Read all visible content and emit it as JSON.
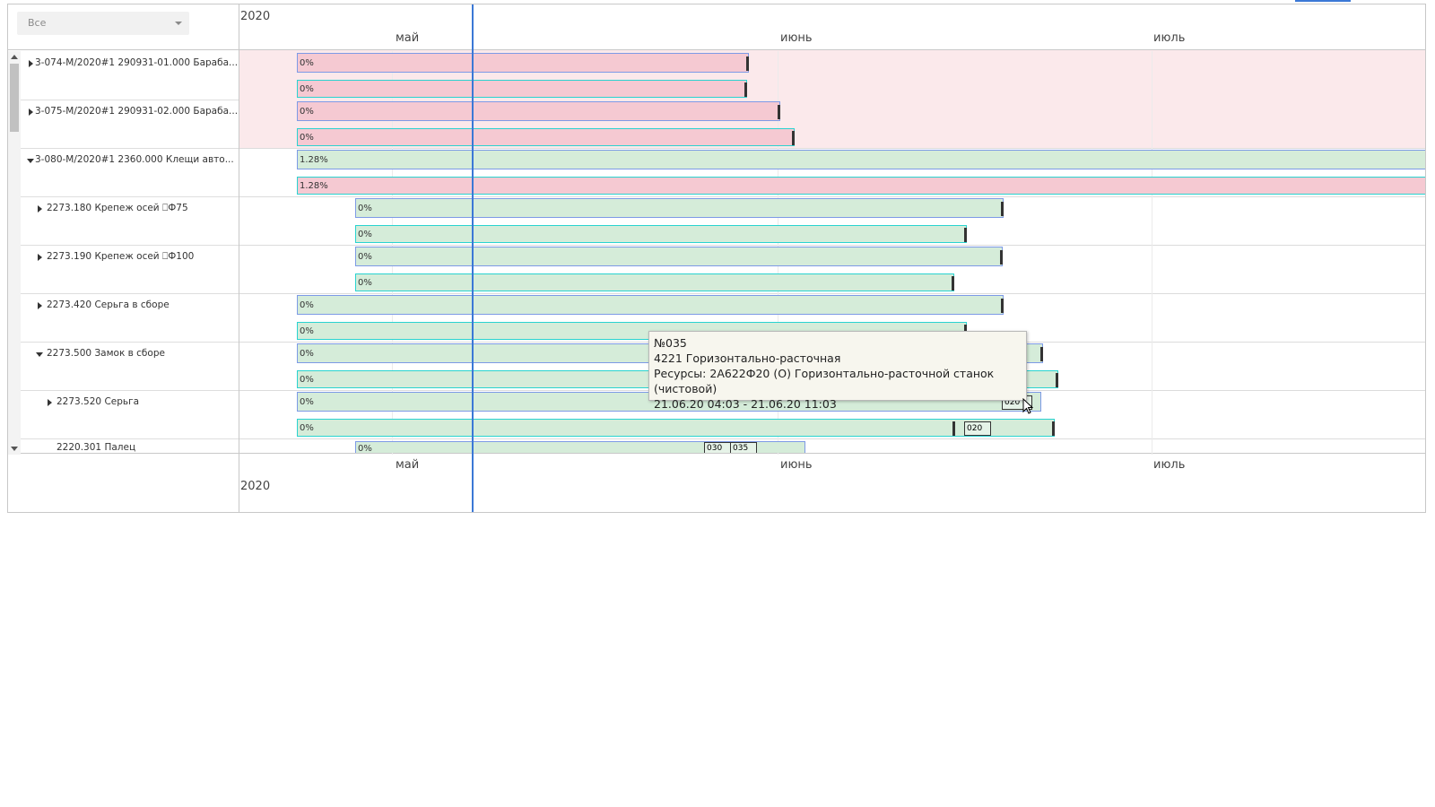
{
  "filter": {
    "value": "Все"
  },
  "scale": {
    "year": "2020",
    "months": [
      "май",
      "июнь",
      "июль"
    ]
  },
  "tree": [
    {
      "label": "3-074-М/2020#1 290931-01.000 Бараба...",
      "expanded": false,
      "level": 0
    },
    {
      "label": "3-075-М/2020#1 290931-02.000 Бараба...",
      "expanded": false,
      "level": 0
    },
    {
      "label": "3-080-М/2020#1 2360.000 Клещи авто...",
      "expanded": true,
      "level": 0
    },
    {
      "label": "2273.180 Крепеж осей ⎕Ф75",
      "expanded": false,
      "level": 1
    },
    {
      "label": "2273.190 Крепеж осей ⎕Ф100",
      "expanded": false,
      "level": 1
    },
    {
      "label": "2273.420 Серьга в сборе",
      "expanded": false,
      "level": 1
    },
    {
      "label": "2273.500 Замок в сборе",
      "expanded": true,
      "level": 1
    },
    {
      "label": "2273.520 Серьга",
      "expanded": false,
      "level": 2
    },
    {
      "label": "2220.301 Палец",
      "expanded": false,
      "level": 3
    }
  ],
  "bars": {
    "r1a": "0%",
    "r1b": "0%",
    "r2a": "0%",
    "r2b": "0%",
    "r3a": "1.28%",
    "r3b": "1.28%",
    "r4a": "0%",
    "r4b": "0%",
    "r5a": "0%",
    "r5b": "0%",
    "r6a": "0%",
    "r6b": "0%",
    "r7a": "0%",
    "r7b": "0%",
    "r8a": "0%",
    "r8b": "0%",
    "r9a": "0%"
  },
  "markers": {
    "m1": "020",
    "m2": "020",
    "m3": "030",
    "m4": "035"
  },
  "tooltip": {
    "number": "№035",
    "operation": "4221 Горизонтально-расточная",
    "resources": "Ресурсы: 2А622Ф20 (О) Горизонтально-расточной станок (чистовой)",
    "dates": "21.06.20 04:03 - 21.06.20 11:03"
  },
  "colors": {
    "late_bar": "#f5c9d2",
    "ok_bar": "#d5ecd9",
    "today_line": "#3b78d6",
    "late_row": "#fbe9eb"
  }
}
